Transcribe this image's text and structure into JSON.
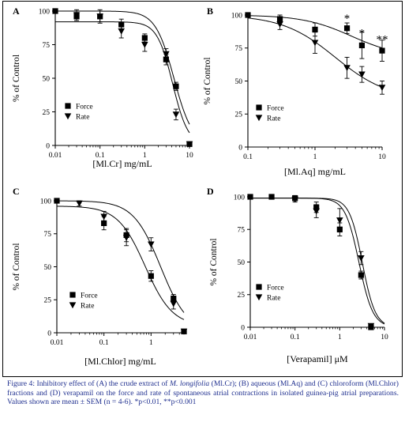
{
  "figure_caption": {
    "pre_italic": "Figure 4: Inhibitory effect of (A) the crude extract of ",
    "italic": "M. longifolia",
    "post_italic": " (Ml.Cr); (B) aqueous (Ml.Aq) and (C) chloroform (Ml.Chlor) fractions and (D) verapamil on the force and rate of spontaneous atrial contractions in isolated guinea-pig atrial preparations. Values shown are mean ± SEM (n = 4-6). *p<0.01, **p<0.001"
  },
  "chart_data": [
    {
      "panel": "A",
      "type": "scatter",
      "xscale": "log",
      "xlim": [
        0.01,
        10
      ],
      "ylim": [
        0,
        100
      ],
      "xticks": [
        0.01,
        0.1,
        1,
        10
      ],
      "xtick_labels": [
        "0.01",
        "0.1",
        "1",
        "10"
      ],
      "yticks": [
        0,
        25,
        50,
        75,
        100
      ],
      "ytick_labels": [
        "0",
        "25",
        "50",
        "75",
        "100"
      ],
      "xlabel": "[Ml.Cr] mg/mL",
      "ylabel": "% of Control",
      "legend_position": "lower-left",
      "series": [
        {
          "name": "Force",
          "marker": "square",
          "x": [
            0.01,
            0.03,
            0.1,
            0.3,
            1,
            3,
            5,
            10
          ],
          "y": [
            100,
            96,
            96,
            90,
            80,
            64,
            44,
            1
          ],
          "err": [
            1,
            3,
            4,
            4,
            3,
            4,
            3,
            1
          ],
          "curve": {
            "top": 100,
            "bottom": 0,
            "ec50": 4.5,
            "hill": 2.1
          }
        },
        {
          "name": "Rate",
          "marker": "triangle-down",
          "x": [
            0.03,
            0.1,
            0.3,
            1,
            3,
            5,
            10
          ],
          "y": [
            97,
            96,
            85,
            75,
            68,
            23,
            1
          ],
          "err": [
            4,
            5,
            5,
            5,
            4,
            4,
            1
          ],
          "curve": {
            "top": 92,
            "bottom": 0,
            "ec50": 4.2,
            "hill": 2.5
          }
        }
      ]
    },
    {
      "panel": "B",
      "type": "scatter",
      "xscale": "log",
      "xlim": [
        0.1,
        10
      ],
      "ylim": [
        0,
        100
      ],
      "xticks": [
        0.1,
        1,
        10
      ],
      "xtick_labels": [
        "0.1",
        "1",
        "10"
      ],
      "yticks": [
        0,
        25,
        50,
        75,
        100
      ],
      "ytick_labels": [
        "0",
        "25",
        "50",
        "75",
        "100"
      ],
      "xlabel": "[Ml.Aq] mg/mL",
      "ylabel": "% of Control",
      "legend_position": "lower-left",
      "annotations": [
        {
          "text": "*",
          "x": 3,
          "y": 97
        },
        {
          "text": "*",
          "x": 5,
          "y": 86
        },
        {
          "text": "**",
          "x": 10,
          "y": 81
        }
      ],
      "series": [
        {
          "name": "Force",
          "marker": "square",
          "x": [
            0.1,
            0.3,
            1,
            3,
            5,
            10
          ],
          "y": [
            100,
            97,
            89,
            90,
            77,
            73
          ],
          "err": [
            1,
            3,
            5,
            4,
            10,
            8
          ],
          "curve": {
            "top": 100,
            "bottom": 68,
            "ec50": 3.5,
            "hill": 1.2
          }
        },
        {
          "name": "Rate",
          "marker": "triangle-down",
          "x": [
            0.3,
            1,
            3,
            5,
            10
          ],
          "y": [
            93,
            79,
            60,
            55,
            45
          ],
          "err": [
            4,
            8,
            8,
            6,
            5
          ],
          "curve": {
            "top": 100,
            "bottom": 36,
            "ec50": 2.0,
            "hill": 1.1
          }
        }
      ]
    },
    {
      "panel": "C",
      "type": "scatter",
      "xscale": "log",
      "xlim": [
        0.01,
        5
      ],
      "ylim": [
        0,
        100
      ],
      "xticks": [
        0.01,
        0.1,
        1
      ],
      "xtick_labels": [
        "0.01",
        "0.1",
        "1"
      ],
      "yticks": [
        0,
        25,
        50,
        75,
        100
      ],
      "ytick_labels": [
        "0",
        "25",
        "50",
        "75",
        "100"
      ],
      "xlabel": "[Ml.Chlor] mg/mL",
      "ylabel": "% of Control",
      "legend_position": "lower-center",
      "series": [
        {
          "name": "Force",
          "marker": "square",
          "x": [
            0.01,
            0.1,
            0.3,
            1,
            3,
            5
          ],
          "y": [
            100,
            83,
            74,
            43,
            26,
            1
          ],
          "err": [
            1,
            5,
            5,
            4,
            3,
            1
          ],
          "curve": {
            "top": 96,
            "bottom": 5,
            "ec50": 0.75,
            "hill": 1.5
          }
        },
        {
          "name": "Rate",
          "marker": "triangle-down",
          "x": [
            0.03,
            0.1,
            0.3,
            1,
            3,
            5
          ],
          "y": [
            98,
            88,
            72,
            67,
            22,
            1
          ],
          "err": [
            2,
            4,
            6,
            5,
            4,
            1
          ],
          "curve": {
            "top": 100,
            "bottom": 0,
            "ec50": 1.6,
            "hill": 1.5
          }
        }
      ]
    },
    {
      "panel": "D",
      "type": "scatter",
      "xscale": "log",
      "xlim": [
        0.01,
        10
      ],
      "ylim": [
        0,
        100
      ],
      "xticks": [
        0.01,
        0.1,
        1,
        10
      ],
      "xtick_labels": [
        "0.01",
        "0.1",
        "1",
        "10"
      ],
      "yticks": [
        0,
        25,
        50,
        75,
        100
      ],
      "ytick_labels": [
        "0",
        "25",
        "50",
        "75",
        "100"
      ],
      "xlabel": "[Verapamil] μM",
      "ylabel": "% of Control",
      "legend_position": "lower-left",
      "series": [
        {
          "name": "Force",
          "marker": "square",
          "x": [
            0.01,
            0.03,
            0.1,
            0.3,
            1,
            3,
            5
          ],
          "y": [
            100,
            100,
            99,
            92,
            75,
            40,
            0
          ],
          "err": [
            1,
            1,
            2,
            4,
            5,
            3,
            1
          ],
          "curve": {
            "top": 99,
            "bottom": 0,
            "ec50": 2.7,
            "hill": 2.8
          }
        },
        {
          "name": "Rate",
          "marker": "triangle-down",
          "x": [
            0.1,
            0.3,
            1,
            3,
            5
          ],
          "y": [
            98,
            89,
            82,
            53,
            1
          ],
          "err": [
            2,
            5,
            9,
            5,
            1
          ],
          "curve": {
            "top": 99,
            "bottom": 0,
            "ec50": 3.2,
            "hill": 3.0
          }
        }
      ]
    }
  ]
}
